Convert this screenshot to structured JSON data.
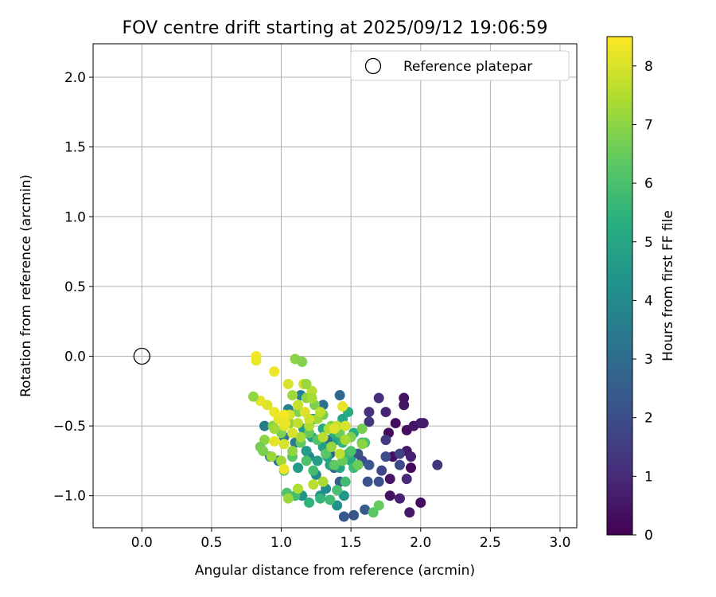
{
  "chart_data": {
    "type": "scatter",
    "title": "FOV centre drift starting at 2025/09/12 19:06:59",
    "xlabel": "Angular distance from reference (arcmin)",
    "ylabel": "Rotation from reference (arcmin)",
    "xlim": [
      -0.35,
      3.12
    ],
    "ylim": [
      -1.23,
      2.24
    ],
    "xticks": [
      "0.0",
      "0.5",
      "1.0",
      "1.5",
      "2.0",
      "2.5",
      "3.0"
    ],
    "yticks": [
      "−1.0",
      "−0.5",
      "0.0",
      "0.5",
      "1.0",
      "1.5",
      "2.0"
    ],
    "grid": true,
    "legend": {
      "position": "top-right",
      "entries": [
        "Reference platepar"
      ]
    },
    "reference_point": {
      "x": 0.0,
      "y": 0.0
    },
    "colorbar": {
      "label": "Hours from first FF file",
      "range": [
        0,
        8.5
      ],
      "ticks": [
        "0",
        "1",
        "2",
        "3",
        "4",
        "5",
        "6",
        "7",
        "8"
      ],
      "colormap": "viridis"
    },
    "series": [
      {
        "points": [
          [
            1.77,
            -0.55,
            0.2
          ],
          [
            1.82,
            -0.48,
            0.3
          ],
          [
            1.88,
            -0.3,
            0.4
          ],
          [
            1.9,
            -0.53,
            0.3
          ],
          [
            1.93,
            -0.8,
            0.2
          ],
          [
            1.95,
            -0.5,
            0.5
          ],
          [
            2.0,
            -0.48,
            0.6
          ],
          [
            2.02,
            -0.48,
            0.7
          ],
          [
            2.0,
            -1.05,
            0.3
          ],
          [
            1.92,
            -1.12,
            0.6
          ],
          [
            1.85,
            -1.02,
            0.8
          ],
          [
            1.78,
            -1.0,
            0.4
          ],
          [
            1.78,
            -0.88,
            0.5
          ],
          [
            1.8,
            -0.72,
            0.3
          ],
          [
            1.9,
            -0.68,
            0.6
          ],
          [
            1.93,
            -0.72,
            0.8
          ],
          [
            1.9,
            -0.88,
            1.0
          ],
          [
            2.12,
            -0.78,
            1.3
          ],
          [
            1.75,
            -0.4,
            0.9
          ],
          [
            1.7,
            -0.3,
            1.1
          ],
          [
            1.63,
            -0.4,
            1.2
          ],
          [
            1.63,
            -0.47,
            1.4
          ],
          [
            1.75,
            -0.6,
            1.5
          ],
          [
            1.88,
            -0.35,
            0.5
          ],
          [
            1.85,
            -0.7,
            1.7
          ],
          [
            1.85,
            -0.78,
            1.9
          ],
          [
            1.75,
            -0.72,
            2.0
          ],
          [
            1.72,
            -0.82,
            1.8
          ],
          [
            1.7,
            -0.9,
            2.1
          ],
          [
            1.62,
            -0.9,
            2.2
          ],
          [
            1.55,
            -0.7,
            2.3
          ],
          [
            1.58,
            -0.75,
            2.0
          ],
          [
            1.63,
            -0.78,
            2.4
          ],
          [
            1.6,
            -1.1,
            2.5
          ],
          [
            1.52,
            -1.14,
            2.3
          ],
          [
            1.45,
            -1.15,
            2.4
          ],
          [
            1.42,
            -0.9,
            2.6
          ],
          [
            1.38,
            -0.8,
            2.7
          ],
          [
            1.35,
            -0.7,
            2.8
          ],
          [
            1.33,
            -0.6,
            3.0
          ],
          [
            1.42,
            -0.28,
            2.9
          ],
          [
            1.3,
            -0.35,
            3.2
          ],
          [
            1.22,
            -0.45,
            3.3
          ],
          [
            1.18,
            -0.55,
            3.4
          ],
          [
            1.1,
            -0.62,
            3.5
          ],
          [
            1.02,
            -0.58,
            3.3
          ],
          [
            0.98,
            -0.75,
            3.1
          ],
          [
            0.92,
            -0.72,
            3.2
          ],
          [
            0.88,
            -0.5,
            3.6
          ],
          [
            1.05,
            -0.38,
            3.8
          ],
          [
            1.14,
            -0.28,
            3.7
          ],
          [
            1.2,
            -0.72,
            3.9
          ],
          [
            1.25,
            -0.85,
            4.0
          ],
          [
            1.32,
            -0.95,
            4.1
          ],
          [
            1.4,
            -1.07,
            4.3
          ],
          [
            1.45,
            -1.0,
            4.5
          ],
          [
            1.28,
            -1.0,
            4.2
          ],
          [
            1.15,
            -1.0,
            4.4
          ],
          [
            1.12,
            -0.8,
            4.6
          ],
          [
            1.18,
            -0.68,
            4.7
          ],
          [
            1.26,
            -0.75,
            4.8
          ],
          [
            1.33,
            -0.72,
            4.9
          ],
          [
            1.4,
            -0.6,
            5.0
          ],
          [
            1.44,
            -0.45,
            5.1
          ],
          [
            1.48,
            -0.4,
            5.2
          ],
          [
            1.52,
            -0.55,
            5.3
          ],
          [
            1.58,
            -0.62,
            5.4
          ],
          [
            1.5,
            -0.75,
            5.2
          ],
          [
            1.42,
            -0.8,
            5.0
          ],
          [
            1.35,
            -0.78,
            4.9
          ],
          [
            1.3,
            -0.65,
            4.8
          ],
          [
            1.22,
            -0.58,
            4.7
          ],
          [
            1.16,
            -0.52,
            4.6
          ],
          [
            1.24,
            -0.45,
            4.9
          ],
          [
            1.3,
            -0.52,
            5.1
          ],
          [
            1.38,
            -0.55,
            5.4
          ],
          [
            1.44,
            -0.62,
            5.6
          ],
          [
            1.48,
            -0.7,
            5.7
          ],
          [
            1.52,
            -0.8,
            5.8
          ],
          [
            1.46,
            -0.9,
            5.9
          ],
          [
            1.4,
            -0.96,
            6.0
          ],
          [
            1.35,
            -1.03,
            5.8
          ],
          [
            1.28,
            -1.02,
            5.6
          ],
          [
            1.2,
            -1.05,
            5.5
          ],
          [
            1.1,
            -1.0,
            5.9
          ],
          [
            1.04,
            -0.98,
            6.1
          ],
          [
            1.02,
            -0.82,
            6.2
          ],
          [
            1.08,
            -0.72,
            6.3
          ],
          [
            1.14,
            -0.62,
            6.4
          ],
          [
            1.2,
            -0.55,
            6.5
          ],
          [
            1.26,
            -0.6,
            6.2
          ],
          [
            1.32,
            -0.7,
            6.3
          ],
          [
            1.38,
            -0.78,
            6.4
          ],
          [
            1.44,
            -0.75,
            6.5
          ],
          [
            1.5,
            -0.68,
            6.1
          ],
          [
            1.55,
            -0.78,
            6.6
          ],
          [
            1.6,
            -0.62,
            6.0
          ],
          [
            1.58,
            -0.52,
            6.7
          ],
          [
            1.5,
            -0.58,
            6.8
          ],
          [
            1.42,
            -0.55,
            6.6
          ],
          [
            1.36,
            -0.5,
            6.9
          ],
          [
            1.3,
            -0.42,
            6.7
          ],
          [
            1.24,
            -0.35,
            6.8
          ],
          [
            1.18,
            -0.3,
            7.0
          ],
          [
            1.12,
            -0.4,
            6.9
          ],
          [
            1.06,
            -0.48,
            7.1
          ],
          [
            1.0,
            -0.55,
            6.8
          ],
          [
            0.94,
            -0.5,
            6.9
          ],
          [
            0.88,
            -0.6,
            7.0
          ],
          [
            0.85,
            -0.65,
            6.7
          ],
          [
            0.87,
            -0.68,
            6.8
          ],
          [
            0.93,
            -0.72,
            7.2
          ],
          [
            1.0,
            -0.75,
            7.3
          ],
          [
            1.08,
            -0.68,
            7.1
          ],
          [
            1.14,
            -0.58,
            7.4
          ],
          [
            1.2,
            -0.5,
            7.5
          ],
          [
            1.26,
            -0.45,
            7.3
          ],
          [
            1.3,
            -0.58,
            7.6
          ],
          [
            1.36,
            -0.65,
            7.2
          ],
          [
            1.42,
            -0.7,
            7.7
          ],
          [
            1.46,
            -0.6,
            7.4
          ],
          [
            1.4,
            -0.5,
            7.8
          ],
          [
            1.34,
            -0.52,
            7.5
          ],
          [
            1.28,
            -0.4,
            7.7
          ],
          [
            1.22,
            -0.25,
            7.6
          ],
          [
            1.16,
            -0.2,
            7.9
          ],
          [
            1.12,
            -0.35,
            7.8
          ],
          [
            1.06,
            -0.42,
            8.0
          ],
          [
            1.02,
            -0.5,
            8.1
          ],
          [
            0.98,
            -0.45,
            8.2
          ],
          [
            0.95,
            -0.4,
            8.3
          ],
          [
            0.9,
            -0.35,
            8.1
          ],
          [
            0.85,
            -0.32,
            8.2
          ],
          [
            0.82,
            0.0,
            8.4
          ],
          [
            0.82,
            -0.03,
            8.3
          ],
          [
            0.95,
            -0.11,
            8.3
          ],
          [
            1.05,
            -0.2,
            8.0
          ],
          [
            1.1,
            -0.02,
            7.0
          ],
          [
            1.15,
            -0.04,
            6.9
          ],
          [
            1.18,
            -0.2,
            7.2
          ],
          [
            1.22,
            -0.3,
            7.4
          ],
          [
            1.08,
            -0.28,
            7.3
          ],
          [
            0.8,
            -0.29,
            7.1
          ],
          [
            0.95,
            -0.52,
            7.3
          ],
          [
            1.02,
            -0.42,
            8.4
          ],
          [
            1.03,
            -0.48,
            8.3
          ],
          [
            1.08,
            -0.55,
            8.0
          ],
          [
            1.12,
            -0.48,
            7.7
          ],
          [
            1.17,
            -0.4,
            8.1
          ],
          [
            1.2,
            -0.45,
            7.9
          ],
          [
            0.95,
            -0.61,
            8.2
          ],
          [
            1.02,
            -0.63,
            8.0
          ],
          [
            1.02,
            -0.81,
            8.3
          ],
          [
            1.12,
            -0.95,
            7.5
          ],
          [
            1.23,
            -0.92,
            7.6
          ],
          [
            1.3,
            -0.9,
            7.4
          ],
          [
            1.05,
            -1.02,
            7.2
          ],
          [
            1.38,
            -0.52,
            8.1
          ],
          [
            1.44,
            -0.36,
            8.2
          ],
          [
            1.46,
            -0.5,
            8.0
          ],
          [
            1.58,
            -0.63,
            7.0
          ],
          [
            1.7,
            -1.07,
            6.5
          ],
          [
            1.66,
            -1.12,
            6.3
          ],
          [
            1.18,
            -0.75,
            6.1
          ],
          [
            1.23,
            -0.82,
            5.9
          ]
        ]
      }
    ]
  }
}
